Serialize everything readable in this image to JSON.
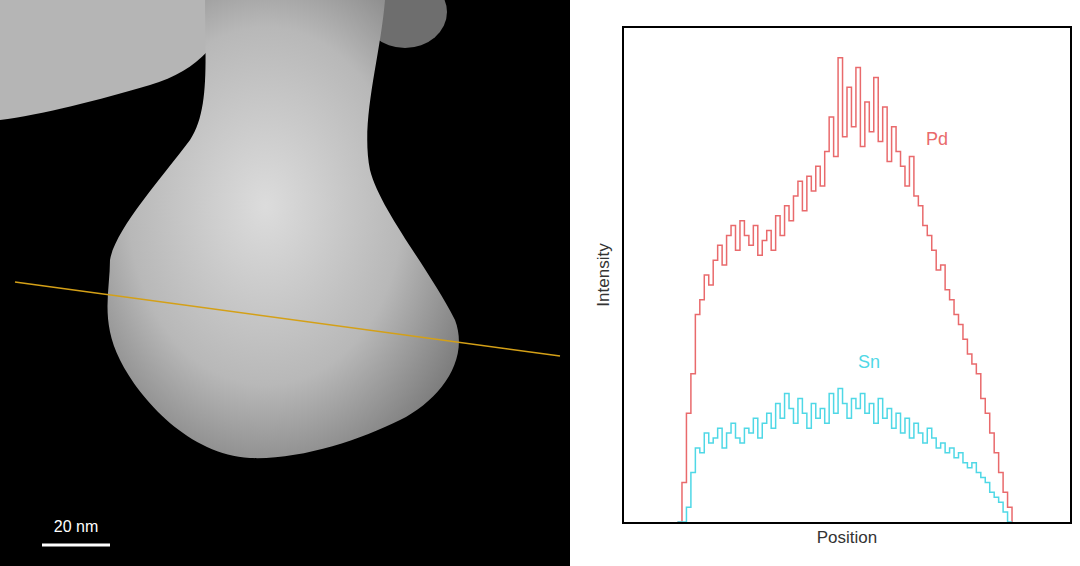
{
  "image": {
    "scale_bar": "20 nm"
  },
  "chart_data": {
    "type": "line",
    "x_label": "Position",
    "y_label": "Intensity",
    "line_style": "step",
    "tick_labels": false,
    "grid": false,
    "xlim": [
      0,
      100
    ],
    "ylim": [
      0,
      100
    ],
    "x": [
      12,
      13,
      14,
      15,
      16,
      17,
      18,
      19,
      20,
      21,
      22,
      23,
      24,
      25,
      26,
      27,
      28,
      29,
      30,
      31,
      32,
      33,
      34,
      35,
      36,
      37,
      38,
      39,
      40,
      41,
      42,
      43,
      44,
      45,
      46,
      47,
      48,
      49,
      50,
      51,
      52,
      53,
      54,
      55,
      56,
      57,
      58,
      59,
      60,
      61,
      62,
      63,
      64,
      65,
      66,
      67,
      68,
      69,
      70,
      71,
      72,
      73,
      74,
      75,
      76,
      77,
      78,
      79,
      80,
      81,
      82,
      83,
      84,
      85,
      86,
      87
    ],
    "series": [
      {
        "name": "Pd",
        "color": "#e96a6c",
        "values": [
          0,
          8,
          22,
          30,
          42,
          45,
          50,
          48,
          53,
          56,
          52,
          58,
          60,
          55,
          61,
          58,
          56,
          60,
          54,
          57,
          59,
          55,
          62,
          58,
          64,
          61,
          66,
          69,
          63,
          70,
          67,
          72,
          68,
          75,
          82,
          74,
          94,
          78,
          88,
          80,
          92,
          76,
          85,
          79,
          90,
          77,
          84,
          73,
          80,
          75,
          72,
          68,
          74,
          66,
          64,
          60,
          58,
          55,
          51,
          52,
          47,
          45,
          42,
          40,
          37,
          34,
          32,
          30,
          25,
          22,
          18,
          14,
          10,
          6,
          3,
          0
        ]
      },
      {
        "name": "Sn",
        "color": "#4fd8e6",
        "values": [
          0,
          0,
          3,
          10,
          15,
          14,
          18,
          16,
          17,
          19,
          15,
          18,
          20,
          17,
          16,
          19,
          18,
          21,
          17,
          20,
          22,
          19,
          24,
          21,
          26,
          23,
          20,
          25,
          22,
          19,
          24,
          21,
          23,
          20,
          26,
          22,
          27,
          24,
          21,
          25,
          23,
          26,
          22,
          24,
          20,
          25,
          21,
          23,
          19,
          22,
          18,
          21,
          17,
          20,
          18,
          16,
          19,
          17,
          15,
          16,
          14,
          15,
          13,
          14,
          12,
          11,
          12,
          10,
          9,
          8,
          6,
          5,
          4,
          2,
          0,
          0
        ]
      }
    ]
  }
}
